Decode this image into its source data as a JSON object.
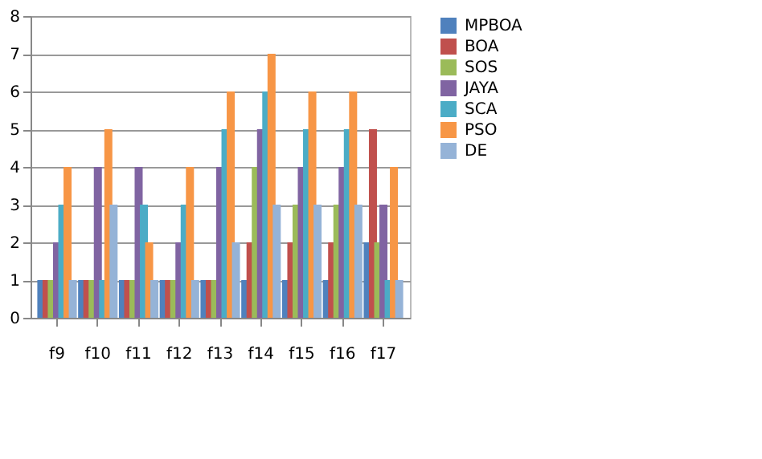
{
  "chart_data": {
    "type": "bar",
    "categories": [
      "f9",
      "f10",
      "f11",
      "f12",
      "f13",
      "f14",
      "f15",
      "f16",
      "f17"
    ],
    "series": [
      {
        "name": "MPBOA",
        "color": "#4f81bd",
        "values": [
          1,
          1,
          1,
          1,
          1,
          1,
          1,
          1,
          2
        ]
      },
      {
        "name": "BOA",
        "color": "#c0504d",
        "values": [
          1,
          1,
          1,
          1,
          1,
          2,
          2,
          2,
          5
        ]
      },
      {
        "name": "SOS",
        "color": "#9bbb59",
        "values": [
          1,
          1,
          1,
          1,
          1,
          4,
          3,
          3,
          2
        ]
      },
      {
        "name": "JAYA",
        "color": "#8064a2",
        "values": [
          2,
          4,
          4,
          2,
          4,
          5,
          4,
          4,
          3
        ]
      },
      {
        "name": "SCA",
        "color": "#4bacc6",
        "values": [
          3,
          1,
          3,
          3,
          5,
          6,
          5,
          5,
          1
        ]
      },
      {
        "name": "PSO",
        "color": "#f79646",
        "values": [
          4,
          5,
          2,
          4,
          6,
          7,
          6,
          6,
          4
        ]
      },
      {
        "name": "DE",
        "color": "#95b3d7",
        "values": [
          1,
          3,
          1,
          1,
          2,
          3,
          3,
          3,
          1
        ]
      }
    ],
    "ylim": [
      0,
      8
    ],
    "yticks": [
      0,
      1,
      2,
      3,
      4,
      5,
      6,
      7,
      8
    ],
    "grid": "y",
    "legend": "right"
  }
}
